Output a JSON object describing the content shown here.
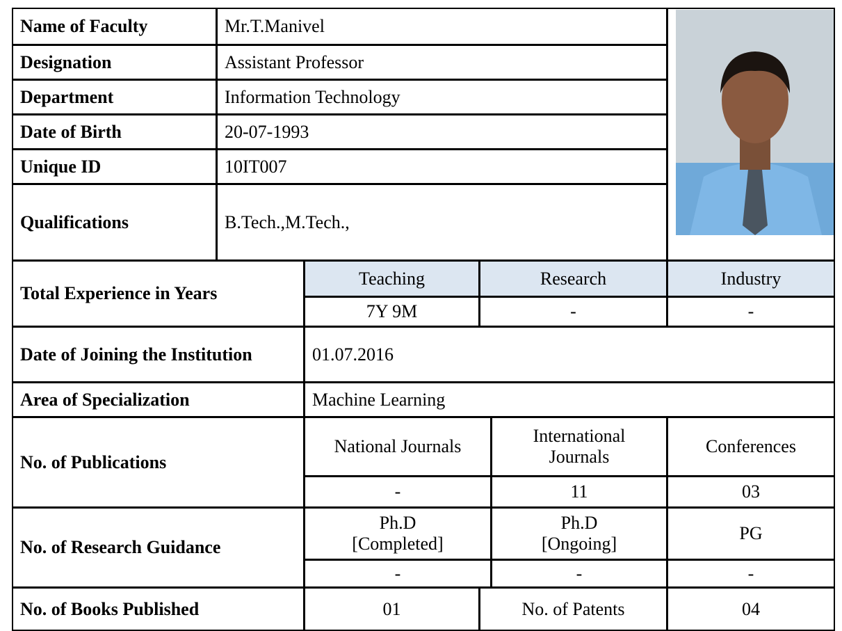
{
  "profile": {
    "rows": [
      {
        "label": "Name of Faculty",
        "value": "Mr.T.Manivel"
      },
      {
        "label": "Designation",
        "value": "Assistant Professor"
      },
      {
        "label": "Department",
        "value": "Information Technology"
      },
      {
        "label": "Date of Birth",
        "value": "20-07-1993"
      },
      {
        "label": "Unique ID",
        "value": "10IT007"
      },
      {
        "label": "Qualifications",
        "value": "B.Tech.,M.Tech.,"
      }
    ]
  },
  "experience": {
    "label": "Total Experience in Years",
    "headers": [
      "Teaching",
      "Research",
      "Industry"
    ],
    "values": [
      "7Y  9M",
      "-",
      "-"
    ]
  },
  "joining": {
    "label": "Date of Joining the Institution",
    "value": "01.07.2016"
  },
  "specialization": {
    "label": "Area of Specialization",
    "value": "Machine Learning"
  },
  "publications": {
    "label": "No. of  Publications",
    "headers": [
      "National Journals",
      "International\nJournals",
      "Conferences"
    ],
    "values": [
      "-",
      "11",
      "03"
    ]
  },
  "guidance": {
    "label": "No. of Research Guidance",
    "headers": [
      "Ph.D\n[Completed]",
      "Ph.D\n[Ongoing]",
      "PG"
    ],
    "values": [
      "-",
      "-",
      "-"
    ]
  },
  "books": {
    "label": "No. of Books Published",
    "value": "01",
    "patents_label": "No. of Patents",
    "patents_value": "04"
  }
}
